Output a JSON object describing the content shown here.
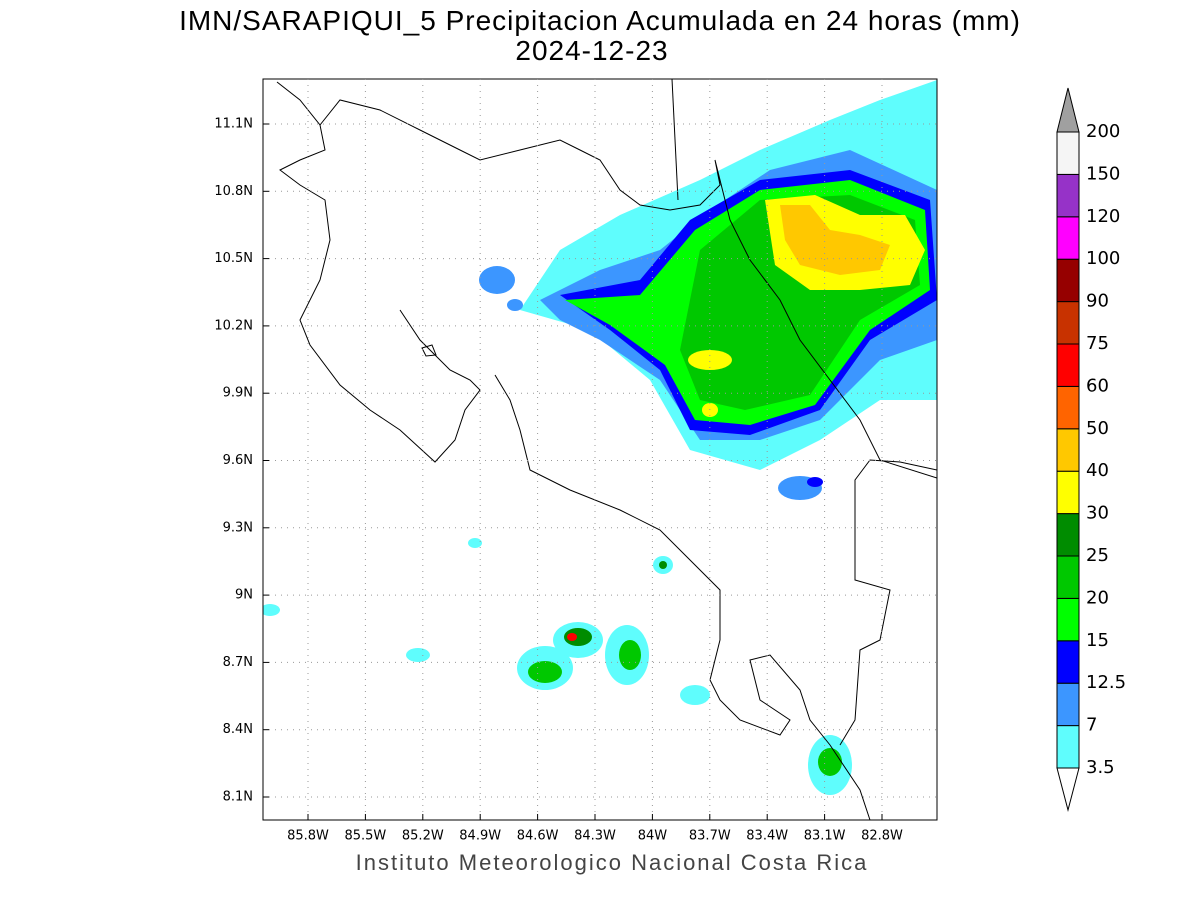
{
  "title": "IMN/SARAPIQUI_5 Precipitacion Acumulada en 24 horas (mm)",
  "subtitle": "2024-12-23",
  "lat_ticks": [
    "11.1N",
    "10.8N",
    "10.5N",
    "10.2N",
    "9.9N",
    "9.6N",
    "9.3N",
    "9N",
    "8.7N",
    "8.4N",
    "8.1N"
  ],
  "lon_ticks": [
    "85.8W",
    "85.5W",
    "85.2W",
    "84.9W",
    "84.6W",
    "84.3W",
    "84W",
    "83.7W",
    "83.4W",
    "83.1W",
    "82.8W"
  ],
  "legend": {
    "levels": [
      "3.5",
      "7",
      "12.5",
      "15",
      "20",
      "25",
      "30",
      "40",
      "50",
      "60",
      "75",
      "90",
      "100",
      "120",
      "150",
      "200"
    ],
    "colors": [
      "#5ffdfd",
      "#3c96ff",
      "#0000ff",
      "#00ff00",
      "#00c800",
      "#008c00",
      "#ffff00",
      "#ffc800",
      "#ff6400",
      "#ff0000",
      "#c83200",
      "#960000",
      "#ff00ff",
      "#9632c8",
      "#f5f5f5"
    ],
    "below_color": "#ffffff",
    "above_color": "#a0a0a0"
  },
  "footer": "Instituto Meteorologico Nacional Costa Rica"
}
